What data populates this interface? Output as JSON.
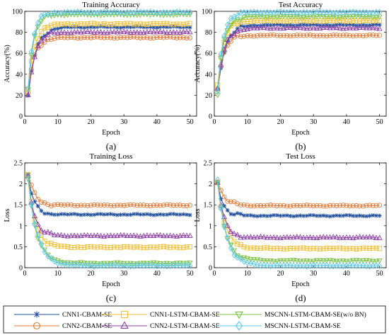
{
  "chart_data": [
    {
      "type": "line",
      "title": "Training Accuracy",
      "caption": "(a)",
      "xlabel": "Epoch",
      "ylabel": "Accuracy(%)",
      "xlim": [
        0,
        52
      ],
      "ylim": [
        0,
        100
      ],
      "xticks": [
        0,
        10,
        20,
        30,
        40,
        50
      ],
      "yticks": [
        0,
        20,
        40,
        60,
        80,
        100
      ],
      "curve": "rise",
      "series": [
        {
          "name": "CNN1-CBAM-SE",
          "start": 18,
          "final": 85,
          "rate": 0.45
        },
        {
          "name": "CNN2-CBAM-SE",
          "start": 22,
          "final": 75,
          "rate": 0.55
        },
        {
          "name": "CNN1-LSTM-CBAM-SE",
          "start": 25,
          "final": 88,
          "rate": 0.55
        },
        {
          "name": "CNN2-LSTM-CBAM-SE",
          "start": 20,
          "final": 80,
          "rate": 0.5
        },
        {
          "name": "MSCNN-LSTM-CBAM-SE(w/o BN)",
          "start": 28,
          "final": 97,
          "rate": 0.6
        },
        {
          "name": "MSCNN-LSTM-CBAM-SE",
          "start": 26,
          "final": 99,
          "rate": 0.65
        }
      ]
    },
    {
      "type": "line",
      "title": "Test Accuracy",
      "caption": "(b)",
      "xlabel": "Epoch",
      "ylabel": "Accuracy(%)",
      "xlim": [
        0,
        52
      ],
      "ylim": [
        0,
        100
      ],
      "xticks": [
        0,
        10,
        20,
        30,
        40,
        50
      ],
      "yticks": [
        0,
        20,
        40,
        60,
        80,
        100
      ],
      "curve": "rise",
      "series": [
        {
          "name": "CNN1-CBAM-SE",
          "start": 25,
          "final": 87,
          "rate": 0.45
        },
        {
          "name": "CNN2-CBAM-SE",
          "start": 28,
          "final": 77,
          "rate": 0.55
        },
        {
          "name": "CNN1-LSTM-CBAM-SE",
          "start": 30,
          "final": 91,
          "rate": 0.55
        },
        {
          "name": "CNN2-LSTM-CBAM-SE",
          "start": 26,
          "final": 84,
          "rate": 0.5
        },
        {
          "name": "MSCNN-LSTM-CBAM-SE(w/o BN)",
          "start": 20,
          "final": 95,
          "rate": 0.6
        },
        {
          "name": "MSCNN-LSTM-CBAM-SE",
          "start": 22,
          "final": 99,
          "rate": 0.65
        }
      ]
    },
    {
      "type": "line",
      "title": "Training Loss",
      "caption": "(c)",
      "xlabel": "Epoch",
      "ylabel": "Loss",
      "xlim": [
        0,
        52
      ],
      "ylim": [
        0,
        2.5
      ],
      "xticks": [
        0,
        10,
        20,
        30,
        40,
        50
      ],
      "yticks": [
        0,
        0.5,
        1,
        1.5,
        2,
        2.5
      ],
      "curve": "decay",
      "series": [
        {
          "name": "CNN1-CBAM-SE",
          "start": 2.2,
          "final": 1.27,
          "rate": 0.6
        },
        {
          "name": "CNN2-CBAM-SE",
          "start": 2.22,
          "final": 1.49,
          "rate": 0.5
        },
        {
          "name": "CNN1-LSTM-CBAM-SE",
          "start": 2.18,
          "final": 0.49,
          "rate": 0.45
        },
        {
          "name": "CNN2-LSTM-CBAM-SE",
          "start": 2.2,
          "final": 0.76,
          "rate": 0.55
        },
        {
          "name": "MSCNN-LSTM-CBAM-SE(w/o BN)",
          "start": 2.15,
          "final": 0.11,
          "rate": 0.4
        },
        {
          "name": "MSCNN-LSTM-CBAM-SE",
          "start": 2.2,
          "final": 0.05,
          "rate": 0.38
        }
      ]
    },
    {
      "type": "line",
      "title": "Test Loss",
      "caption": "(d)",
      "xlabel": "Epoch",
      "ylabel": "Loss",
      "xlim": [
        0,
        52
      ],
      "ylim": [
        0,
        2.5
      ],
      "xticks": [
        0,
        10,
        20,
        30,
        40,
        50
      ],
      "yticks": [
        0,
        0.5,
        1,
        1.5,
        2,
        2.5
      ],
      "curve": "decay",
      "series": [
        {
          "name": "CNN1-CBAM-SE",
          "start": 2.05,
          "final": 1.24,
          "rate": 0.6
        },
        {
          "name": "CNN2-CBAM-SE",
          "start": 2.08,
          "final": 1.48,
          "rate": 0.5
        },
        {
          "name": "CNN1-LSTM-CBAM-SE",
          "start": 2.02,
          "final": 0.46,
          "rate": 0.45
        },
        {
          "name": "CNN2-LSTM-CBAM-SE",
          "start": 2.05,
          "final": 0.72,
          "rate": 0.55
        },
        {
          "name": "MSCNN-LSTM-CBAM-SE(w/o BN)",
          "start": 2.0,
          "final": 0.17,
          "rate": 0.4
        },
        {
          "name": "MSCNN-LSTM-CBAM-SE",
          "start": 2.06,
          "final": 0.05,
          "rate": 0.38
        }
      ]
    }
  ],
  "legend": {
    "items": [
      {
        "label": "CNN1-CBAM-SE",
        "color": "#1f4e9c",
        "marker": "asterisk"
      },
      {
        "label": "CNN2-CBAM-SE",
        "color": "#e07b39",
        "marker": "circle"
      },
      {
        "label": "CNN1-LSTM-CBAM-SE",
        "color": "#f0c23a",
        "marker": "square"
      },
      {
        "label": "CNN2-LSTM-CBAM-SE",
        "color": "#8b3fa3",
        "marker": "triangle-up"
      },
      {
        "label": "MSCNN-LSTM-CBAM-SE(w/o BN)",
        "color": "#7bc043",
        "marker": "triangle-down"
      },
      {
        "label": "MSCNN-LSTM-CBAM-SE",
        "color": "#5bc8e8",
        "marker": "diamond"
      }
    ]
  }
}
